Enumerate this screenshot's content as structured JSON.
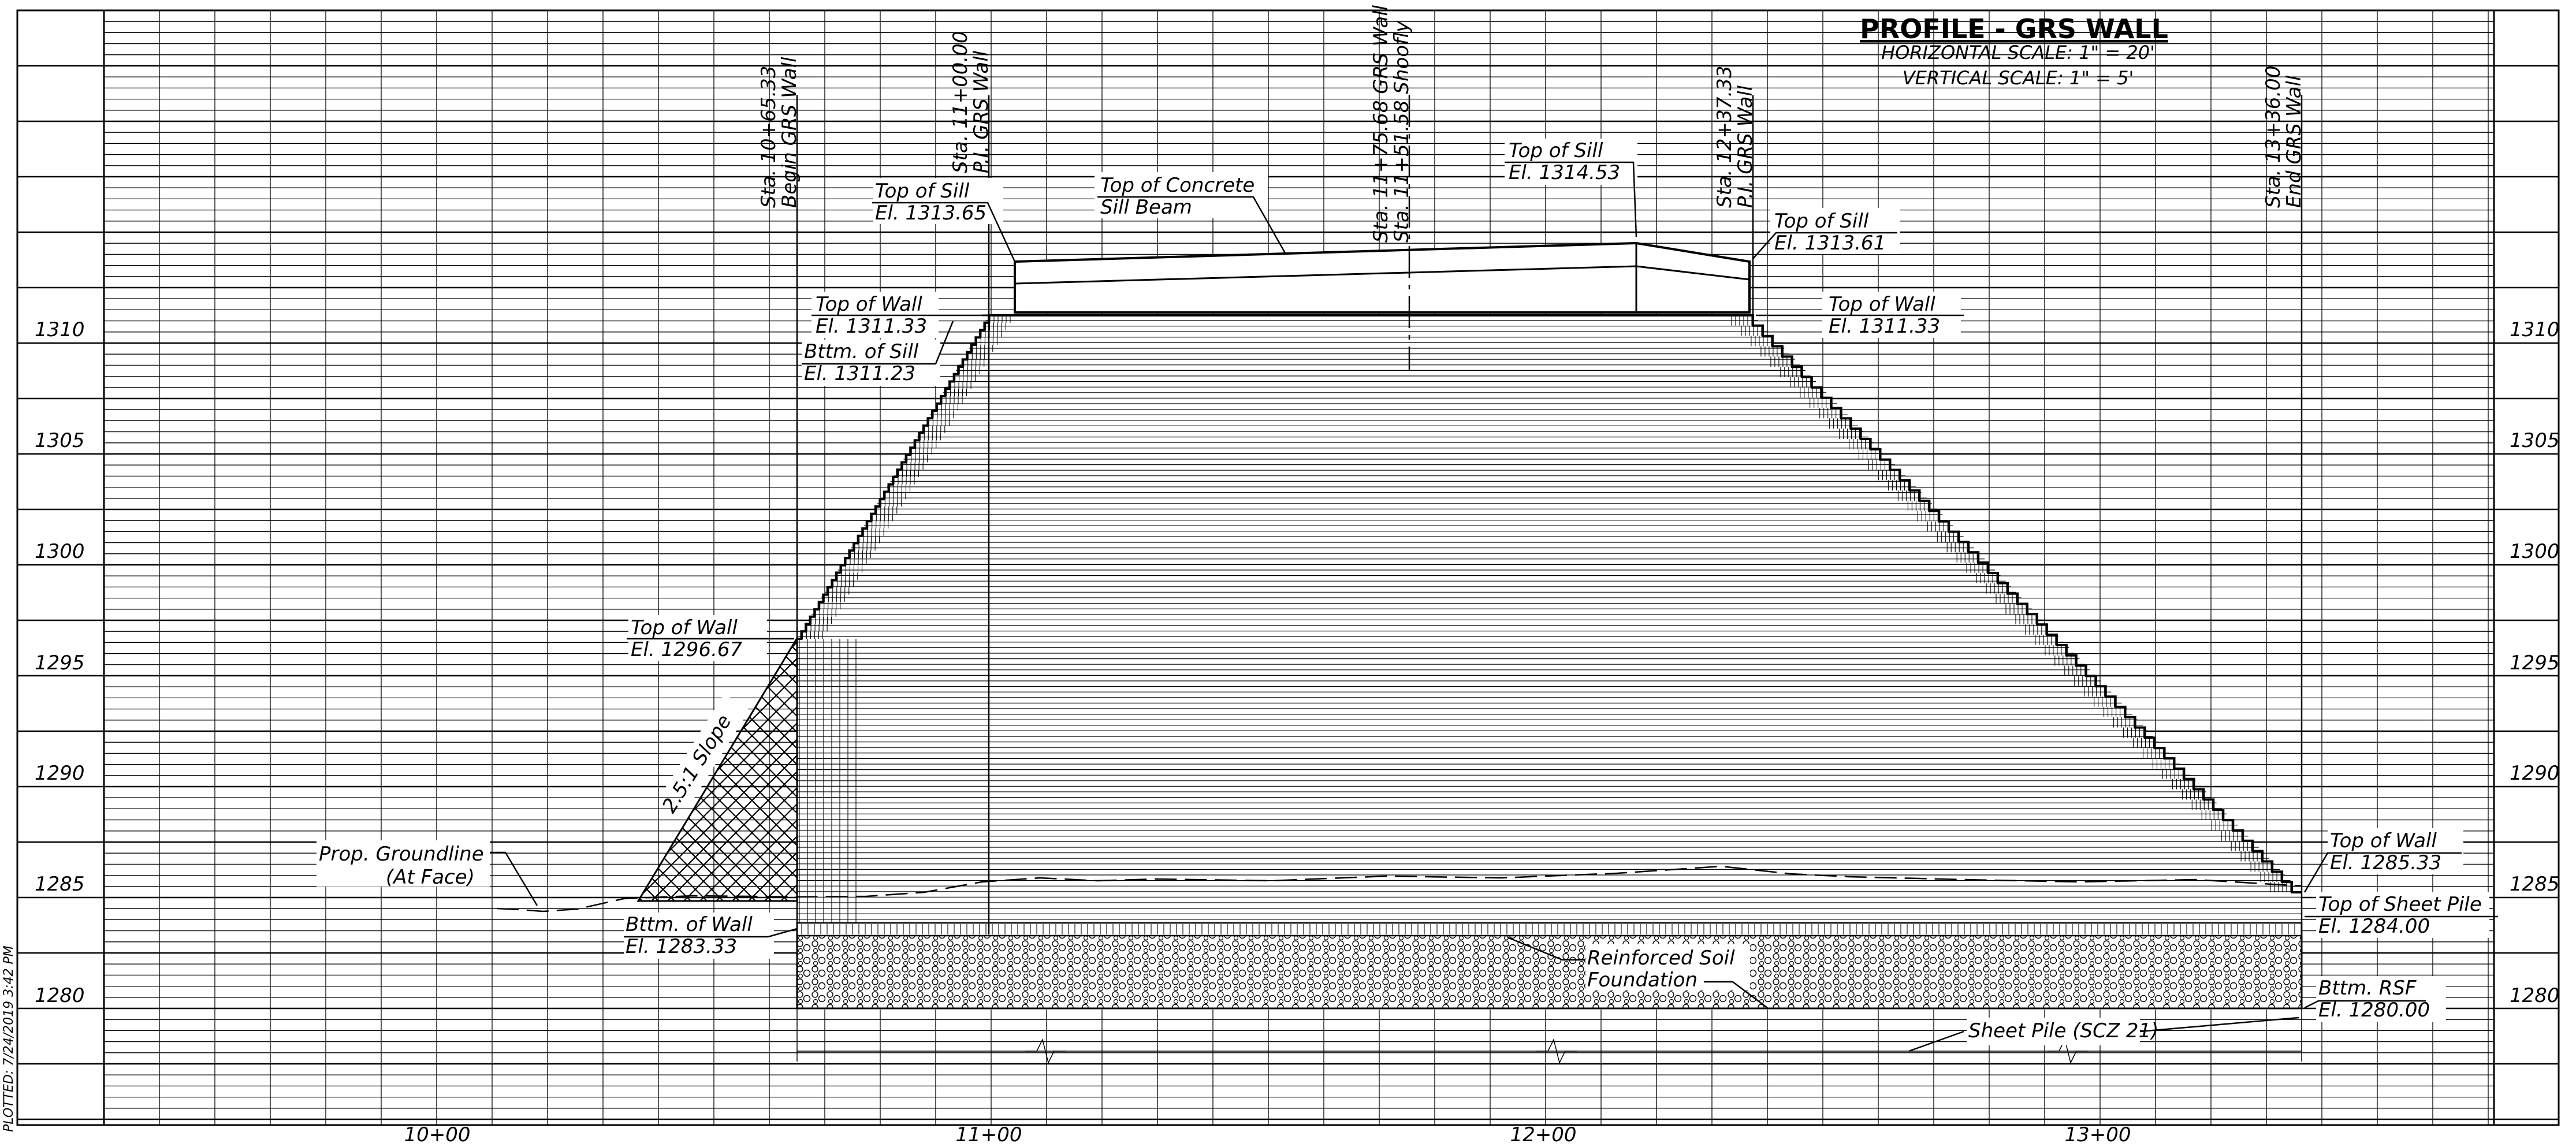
{
  "title": "PROFILE - GRS WALL",
  "scales": {
    "horizontal": "HORIZONTAL SCALE: 1\" = 20'",
    "vertical": "VERTICAL SCALE: 1\" = 5'"
  },
  "elevation_labels": [
    "1310",
    "1305",
    "1300",
    "1295",
    "1290",
    "1285",
    "1280"
  ],
  "station_labels": [
    "10+00",
    "11+00",
    "12+00",
    "13+00"
  ],
  "station_callouts": [
    {
      "line1": "Sta. 10+65.33",
      "line2": "Begin GRS Wall"
    },
    {
      "line1": "Sta. 11+00.00",
      "line2": "P.I. GRS Wall"
    },
    {
      "line1": "Sta. 11+75.68 GRS Wall =",
      "line2": "Sta. 11+51.58 Shoofly"
    },
    {
      "line1": "Sta. 12+37.33",
      "line2": "P.I. GRS Wall"
    },
    {
      "line1": "Sta. 13+36.00",
      "line2": "End GRS Wall"
    }
  ],
  "annotations": {
    "top_sill_left": {
      "line1": "Top of Sill",
      "line2": "El. 1313.65"
    },
    "concrete_sill_beam": {
      "line1": "Top of Concrete",
      "line2": "Sill Beam"
    },
    "top_sill_mid": {
      "line1": "Top of Sill",
      "line2": "El. 1314.53"
    },
    "top_sill_right": {
      "line1": "Top of Sill",
      "line2": "El. 1313.61"
    },
    "top_wall_left_upper": {
      "line1": "Top of Wall",
      "line2": "El. 1311.33"
    },
    "bottom_sill": {
      "line1": "Bttm. of Sill",
      "line2": "El. 1311.23"
    },
    "top_wall_right_upper": {
      "line1": "Top of Wall",
      "line2": "El. 1311.33"
    },
    "top_wall_left_lower": {
      "line1": "Top of Wall",
      "line2": "El. 1296.67"
    },
    "slope": "2.5:1 Slope",
    "groundline": {
      "line1": "Prop. Groundline",
      "line2": "(At Face)"
    },
    "bottom_wall": {
      "line1": "Bttm. of Wall",
      "line2": "El. 1283.33"
    },
    "reinforced_soil": {
      "line1": "Reinforced Soil",
      "line2": "Foundation"
    },
    "sheet_pile": "Sheet Pile (SCZ 21)",
    "top_wall_right_lower": {
      "line1": "Top of Wall",
      "line2": "El. 1285.33"
    },
    "top_sheet_pile": {
      "line1": "Top of Sheet Pile",
      "line2": "El. 1284.00"
    },
    "bottom_rsf": {
      "line1": "Bttm. RSF",
      "line2": "El. 1280.00"
    }
  },
  "edge_text": "PLOTTED: 7/24/2019 3:42 PM"
}
